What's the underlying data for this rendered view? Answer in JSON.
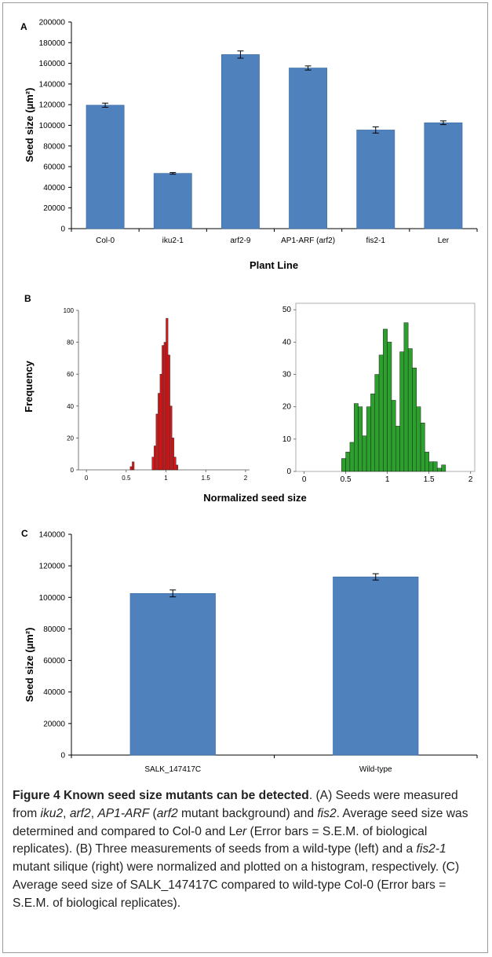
{
  "colors": {
    "bar": "#4f81bd",
    "bar_stroke": "#3a6aa3",
    "hist_left": "#e31a1c",
    "hist_right": "#2ca02c",
    "axis": "#000000"
  },
  "panel_labels": {
    "a": "A",
    "b": "B",
    "c": "C"
  },
  "chart_data": [
    {
      "type": "bar",
      "panel": "A",
      "categories": [
        "Col-0",
        "iku2-1",
        "arf2-9",
        "AP1-ARF (arf2)",
        "fis2-1",
        "Ler"
      ],
      "values": [
        119500,
        53500,
        168500,
        155500,
        95500,
        102500
      ],
      "errors": [
        2000,
        800,
        3500,
        2000,
        3000,
        1800
      ],
      "ylabel": "Seed size (µm²)",
      "xlabel": "Plant Line",
      "ylim": [
        0,
        200000
      ],
      "yticks": [
        "0",
        "20000",
        "40000",
        "60000",
        "80000",
        "100000",
        "120000",
        "140000",
        "160000",
        "180000",
        "200000"
      ],
      "grid": false
    },
    {
      "type": "histogram",
      "panel": "B-left",
      "bin_starts": [
        0.55,
        0.575,
        0.825,
        0.85,
        0.875,
        0.9,
        0.925,
        0.95,
        0.975,
        1.0,
        1.025,
        1.05,
        1.075,
        1.1,
        1.125
      ],
      "bin_width": 0.025,
      "values": [
        2,
        5,
        8,
        15,
        35,
        48,
        60,
        78,
        80,
        95,
        72,
        40,
        20,
        8,
        3
      ],
      "xlim": [
        -0.1,
        2.05
      ],
      "ylim": [
        0,
        100
      ],
      "xticks": [
        "0",
        "0.5",
        "1",
        "1.5",
        "2"
      ],
      "yticks": [
        "0",
        "20",
        "40",
        "60",
        "80",
        "100"
      ],
      "ylabel": "Frequency"
    },
    {
      "type": "histogram",
      "panel": "B-right",
      "bin_starts": [
        0.45,
        0.5,
        0.55,
        0.6,
        0.65,
        0.7,
        0.75,
        0.8,
        0.85,
        0.9,
        0.95,
        1.0,
        1.05,
        1.1,
        1.15,
        1.2,
        1.25,
        1.3,
        1.35,
        1.4,
        1.45,
        1.5,
        1.55,
        1.6,
        1.65
      ],
      "bin_width": 0.05,
      "values": [
        4,
        6,
        9,
        21,
        20,
        11,
        20,
        24,
        30,
        36,
        44,
        40,
        22,
        14,
        37,
        46,
        38,
        32,
        20,
        15,
        6,
        3,
        3,
        1,
        2
      ],
      "xlim": [
        -0.1,
        2.05
      ],
      "ylim": [
        0,
        52
      ],
      "xticks": [
        "0",
        "0.5",
        "1",
        "1.5",
        "2"
      ],
      "yticks": [
        "0",
        "10",
        "20",
        "30",
        "40",
        "50"
      ],
      "xlabel_shared": "Normalized seed size"
    },
    {
      "type": "bar",
      "panel": "C",
      "categories": [
        "SALK_147417C",
        "Wild-type"
      ],
      "values": [
        102500,
        113000
      ],
      "errors": [
        2200,
        2000
      ],
      "ylabel": "Seed size (µm²)",
      "ylim": [
        0,
        140000
      ],
      "yticks": [
        "0",
        "20000",
        "40000",
        "60000",
        "80000",
        "100000",
        "120000",
        "140000"
      ],
      "grid": false
    }
  ],
  "caption": {
    "title": "Figure 4 Known seed size mutants can be detected",
    "p1": ". (A) Seeds were measured from ",
    "m1": "iku2",
    "p2": ", ",
    "m2": "arf2",
    "p3": ", ",
    "m3": "AP1-ARF",
    "p4": " (",
    "m4": "arf2",
    "p5": " mutant background) and ",
    "m5": "fis2",
    "p6": ". Average seed size was determined and compared to Col-0 and L",
    "m6": "er",
    "p7": " (Error bars = S.E.M. of biological replicates). (B) Three measurements of seeds from a wild-type (left) and a ",
    "m7": "fis2-1",
    "p8": " mutant silique (right) were normalized and plotted on a histogram, respectively. (C) Average seed size of SALK_147417C compared to wild-type Col-0 (Error bars = S.E.M. of biological replicates)."
  }
}
